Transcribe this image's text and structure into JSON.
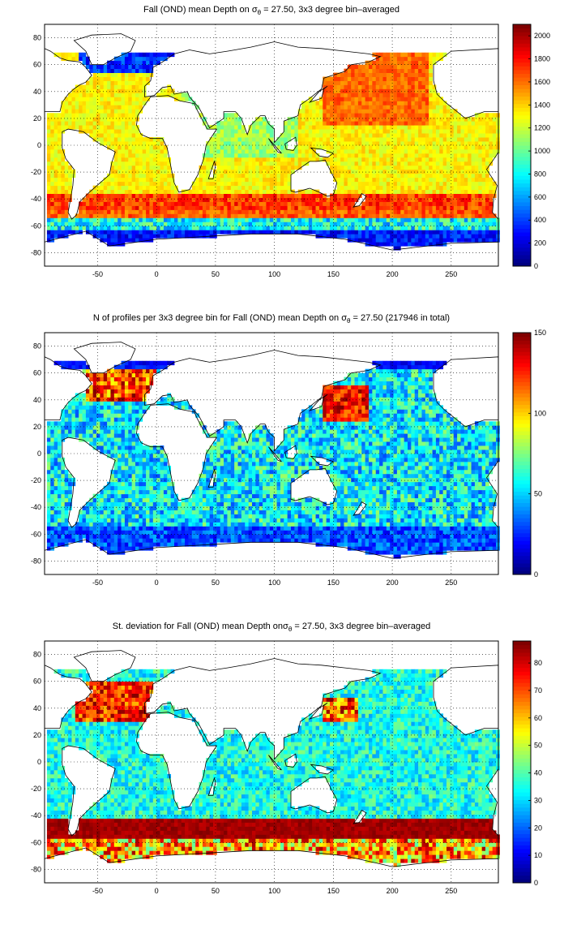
{
  "maps": [
    {
      "title_pre": "Fall (OND) mean Depth on ",
      "sigma": "σ",
      "sigma_sub": "θ",
      "title_post": " = 27.50, 3x3 degree bin–averaged",
      "colorbar_ticks": [
        "2000",
        "1800",
        "1600",
        "1400",
        "1200",
        "1000",
        "800",
        "600",
        "400",
        "200",
        "0"
      ],
      "colorbar_range": [
        0,
        2100
      ],
      "field": "depth"
    },
    {
      "title_pre": "N of profiles per 3x3 degree bin for Fall (OND) mean Depth on ",
      "sigma": "σ",
      "sigma_sub": "θ",
      "title_post": " = 27.50 (217946 in total)",
      "colorbar_ticks": [
        "150",
        "100",
        "50",
        "0"
      ],
      "colorbar_range": [
        0,
        150
      ],
      "field": "count"
    },
    {
      "title_pre": "St. deviation for Fall (OND) mean Depth on",
      "sigma": "σ",
      "sigma_sub": "θ",
      "title_post": " = 27.50, 3x3 degree bin–averaged",
      "colorbar_ticks": [
        "80",
        "70",
        "60",
        "50",
        "40",
        "30",
        "20",
        "10",
        "0"
      ],
      "colorbar_range": [
        0,
        88
      ],
      "field": "std"
    }
  ],
  "axes": {
    "x_ticks": [
      "-50",
      "0",
      "50",
      "100",
      "150",
      "200",
      "250"
    ],
    "y_ticks": [
      "80",
      "60",
      "40",
      "20",
      "0",
      "-20",
      "-40",
      "-60",
      "-80"
    ],
    "x_range": [
      -95,
      290
    ],
    "y_range": [
      -90,
      90
    ]
  },
  "colormap": "jet",
  "grid": "dotted"
}
